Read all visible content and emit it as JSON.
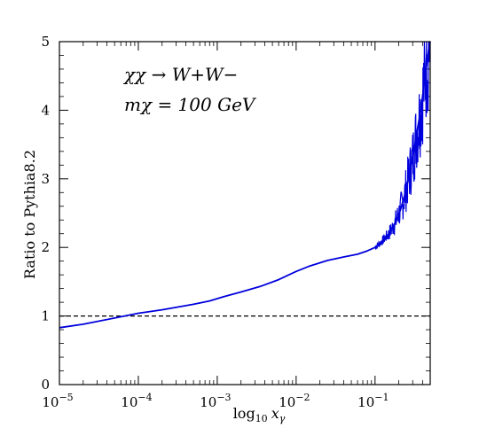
{
  "chart_data": {
    "type": "line",
    "title": "",
    "xlabel": "log",
    "xlabel_sub": "10",
    "xlabel_var": "x",
    "xlabel_var_sub": "γ",
    "ylabel": "Ratio to Pythia8.2",
    "xscale": "log",
    "xlim": [
      1e-05,
      0.5
    ],
    "ylim": [
      0,
      5
    ],
    "grid": false,
    "x_ticks": [
      {
        "value": 1e-05,
        "base": "10",
        "exp": "−5"
      },
      {
        "value": 0.0001,
        "base": "10",
        "exp": "−4"
      },
      {
        "value": 0.001,
        "base": "10",
        "exp": "−3"
      },
      {
        "value": 0.01,
        "base": "10",
        "exp": "−2"
      },
      {
        "value": 0.1,
        "base": "10",
        "exp": "−1"
      }
    ],
    "y_ticks": [
      {
        "value": 0,
        "label": "0"
      },
      {
        "value": 1,
        "label": "1"
      },
      {
        "value": 2,
        "label": "2"
      },
      {
        "value": 3,
        "label": "3"
      },
      {
        "value": 4,
        "label": "4"
      },
      {
        "value": 5,
        "label": "5"
      }
    ],
    "annotations": {
      "process": "χχ → W+W−",
      "mass": "mχ = 100 GeV"
    },
    "reference_line": {
      "y": 1.0,
      "style": "dashed",
      "color": "#000000"
    },
    "series": [
      {
        "color": "#0000dd",
        "x": [
          1e-05,
          2e-05,
          5e-05,
          0.0001,
          0.0002,
          0.0005,
          0.0008,
          0.0012,
          0.002,
          0.0035,
          0.006,
          0.01,
          0.015,
          0.025,
          0.04,
          0.06,
          0.08,
          0.1,
          0.12,
          0.15,
          0.18,
          0.21,
          0.24,
          0.27,
          0.3,
          0.33,
          0.36,
          0.39,
          0.42,
          0.45,
          0.48,
          0.5
        ],
        "y": [
          0.83,
          0.88,
          0.97,
          1.04,
          1.09,
          1.17,
          1.22,
          1.28,
          1.35,
          1.43,
          1.53,
          1.65,
          1.73,
          1.81,
          1.86,
          1.9,
          1.95,
          2.0,
          2.08,
          2.2,
          2.36,
          2.55,
          2.78,
          3.05,
          3.3,
          3.6,
          3.85,
          4.1,
          4.4,
          4.65,
          4.9,
          5.0
        ]
      }
    ]
  }
}
